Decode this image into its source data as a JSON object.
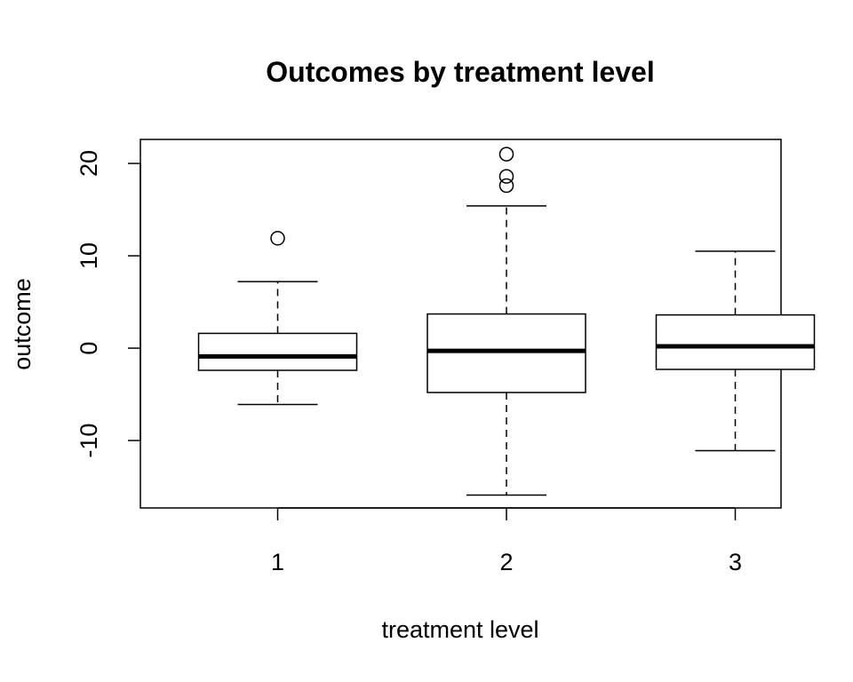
{
  "chart_data": {
    "type": "boxplot",
    "title": "Outcomes by treatment level",
    "xlabel": "treatment level",
    "ylabel": "outcome",
    "ylim": [
      -17.3,
      22.6
    ],
    "yticks": [
      -10,
      0,
      10,
      20
    ],
    "ytick_labels": [
      "-10",
      "0",
      "10",
      "20"
    ],
    "categories": [
      "1",
      "2",
      "3"
    ],
    "grid": false,
    "boxes": [
      {
        "category": "1",
        "whisker_low": -6.1,
        "q1": -2.4,
        "median": -0.9,
        "q3": 1.6,
        "whisker_high": 7.2,
        "outliers": [
          11.9
        ]
      },
      {
        "category": "2",
        "whisker_low": -15.9,
        "q1": -4.8,
        "median": -0.3,
        "q3": 3.7,
        "whisker_high": 15.4,
        "outliers": [
          17.6,
          18.6,
          21.0
        ]
      },
      {
        "category": "3",
        "whisker_low": -11.1,
        "q1": -2.3,
        "median": 0.2,
        "q3": 3.6,
        "whisker_high": 10.5,
        "outliers": []
      }
    ]
  }
}
